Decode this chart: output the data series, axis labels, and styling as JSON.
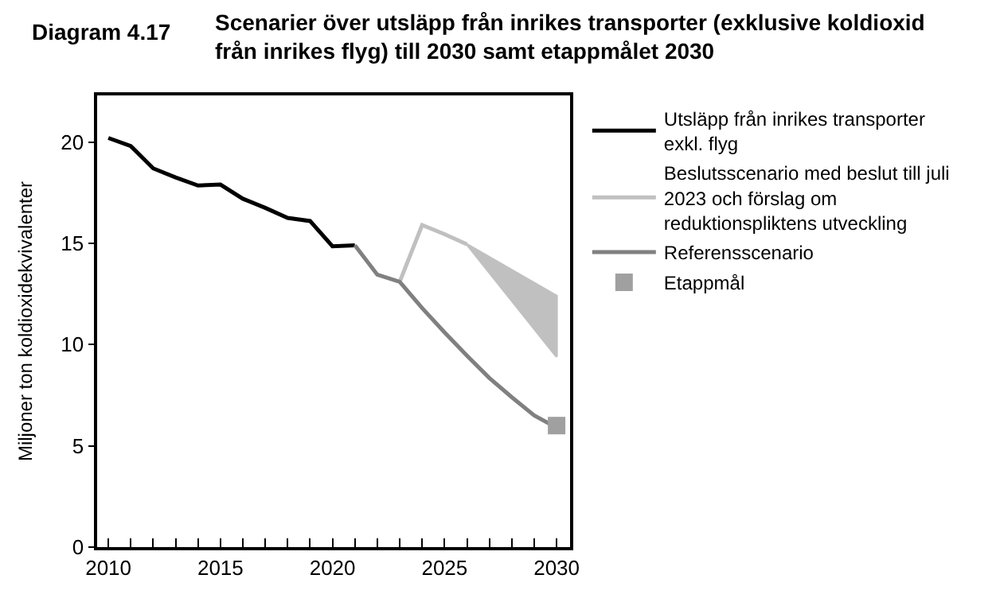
{
  "chart_data": {
    "type": "line",
    "title": "Scenarier över utsläpp från inrikes transporter (exklusive koldioxid från inrikes flyg) till 2030 samt etappmålet 2030",
    "annotations": [
      "Diagram 4.17"
    ],
    "ylabel": "Miljoner ton koldioxidekvivalenter",
    "x": [
      2010,
      2011,
      2012,
      2013,
      2014,
      2015,
      2016,
      2017,
      2018,
      2019,
      2020,
      2021
    ],
    "series": [
      {
        "name": "Utsläpp från inrikes transporter exkl. flyg",
        "color": "#000000",
        "values": [
          20.2,
          19.8,
          18.7,
          18.25,
          17.85,
          17.9,
          17.2,
          16.75,
          16.25,
          16.1,
          14.85,
          14.9
        ]
      },
      {
        "name": "Beslutsscenario med beslut till juli 2023 och förslag om reduktionspliktens utveckling",
        "color": "#c0c0c0",
        "x": [
          2023,
          2024,
          2025,
          2026,
          2030
        ],
        "values": [
          13.1,
          15.9,
          15.45,
          14.95,
          null
        ],
        "lower": [
          null,
          null,
          null,
          14.95,
          9.4
        ],
        "upper": [
          null,
          null,
          null,
          14.95,
          12.4
        ]
      },
      {
        "name": "Referensscenario",
        "color": "#808080",
        "x": [
          2021,
          2022,
          2023,
          2024,
          2025,
          2026,
          2027,
          2028,
          2029,
          2030
        ],
        "values": [
          14.9,
          13.45,
          13.1,
          11.8,
          10.6,
          9.45,
          8.35,
          7.4,
          6.5,
          5.9
        ]
      },
      {
        "name": "Etappmål",
        "type": "scatter",
        "marker": "square",
        "color": "#a0a0a0",
        "x": [
          2030
        ],
        "values": [
          6.0
        ]
      }
    ],
    "xlim": [
      2009.5,
      2030.6
    ],
    "xticks": [
      2010,
      {
        "value": 2011,
        "label": null
      },
      {
        "value": 2012,
        "label": null
      },
      {
        "value": 2013,
        "label": null
      },
      {
        "value": 2014,
        "label": null
      },
      2015,
      {
        "value": 2016,
        "label": null
      },
      {
        "value": 2017,
        "label": null
      },
      {
        "value": 2018,
        "label": null
      },
      {
        "value": 2019,
        "label": null
      },
      2020,
      {
        "value": 2021,
        "label": null
      },
      {
        "value": 2022,
        "label": null
      },
      {
        "value": 2023,
        "label": null
      },
      {
        "value": 2024,
        "label": null
      },
      2025,
      {
        "value": 2026,
        "label": null
      },
      {
        "value": 2027,
        "label": null
      },
      {
        "value": 2028,
        "label": null
      },
      {
        "value": 2029,
        "label": null
      },
      2030
    ],
    "ylim": [
      0,
      22.3
    ],
    "yticks": [
      0,
      5,
      10,
      15,
      20
    ],
    "legend": "right",
    "marker": "none",
    "line_style": "solid"
  }
}
